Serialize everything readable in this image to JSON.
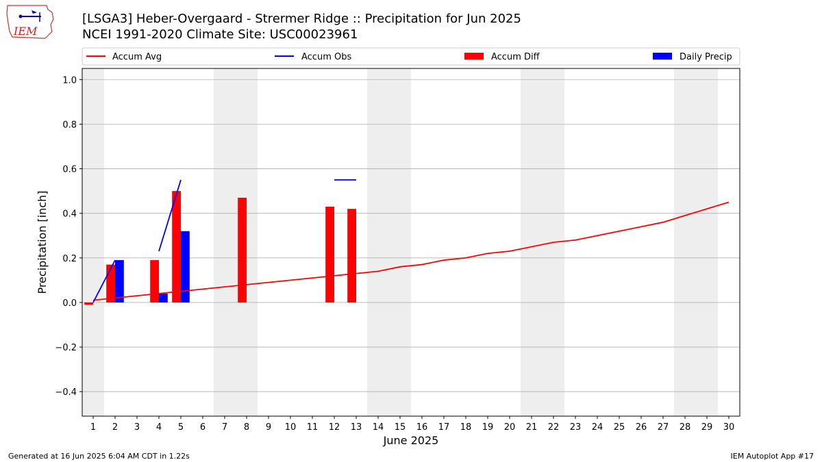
{
  "header": {
    "title": "[LSGA3] Heber-Overgaard - Strermer Ridge :: Precipitation for Jun 2025",
    "subtitle": "NCEI 1991-2020 Climate Site: USC00023961",
    "logo_text": "IEM"
  },
  "footer": {
    "left": "Generated at 16 Jun 2025 6:04 AM CDT in 1.22s",
    "right": "IEM Autoplot App #17"
  },
  "colors": {
    "accum_avg": "#ff0000",
    "accum_obs": "#0000ff",
    "accum_diff": "#ff0000",
    "daily_precip": "#0000ff",
    "weekend_band": "#eeeeee",
    "grid": "#b0b0b0"
  },
  "chart_data": {
    "type": "bar",
    "xlabel": "June 2025",
    "ylabel": "Precipitation [inch]",
    "xlim": [
      0.5,
      30.5
    ],
    "ylim": [
      -0.51,
      1.05
    ],
    "x_ticks": [
      1,
      2,
      3,
      4,
      5,
      6,
      7,
      8,
      9,
      10,
      11,
      12,
      13,
      14,
      15,
      16,
      17,
      18,
      19,
      20,
      21,
      22,
      23,
      24,
      25,
      26,
      27,
      28,
      29,
      30
    ],
    "y_ticks": [
      -0.4,
      -0.2,
      0.0,
      0.2,
      0.4,
      0.6,
      0.8,
      1.0
    ],
    "y_tick_labels": [
      "−0.4",
      "−0.2",
      "0.0",
      "0.2",
      "0.4",
      "0.6",
      "0.8",
      "1.0"
    ],
    "grid": true,
    "legend_position": "top",
    "weekend_days": [
      1,
      7,
      8,
      14,
      15,
      21,
      22,
      28,
      29
    ],
    "series": [
      {
        "name": "Accum Avg",
        "kind": "line",
        "x": [
          1,
          2,
          3,
          4,
          5,
          6,
          7,
          8,
          9,
          10,
          11,
          12,
          13,
          14,
          15,
          16,
          17,
          18,
          19,
          20,
          21,
          22,
          23,
          24,
          25,
          26,
          27,
          28,
          29,
          30
        ],
        "values": [
          0.01,
          0.02,
          0.03,
          0.04,
          0.05,
          0.06,
          0.07,
          0.08,
          0.09,
          0.1,
          0.11,
          0.12,
          0.13,
          0.14,
          0.16,
          0.17,
          0.19,
          0.2,
          0.22,
          0.23,
          0.25,
          0.27,
          0.28,
          0.3,
          0.32,
          0.34,
          0.36,
          0.39,
          0.42,
          0.45
        ]
      },
      {
        "name": "Accum Obs",
        "kind": "line",
        "segments": [
          {
            "x": [
              1,
              2
            ],
            "values": [
              0.0,
              0.19
            ]
          },
          {
            "x": [
              4,
              5
            ],
            "values": [
              0.23,
              0.55
            ]
          },
          {
            "x": [
              12,
              13
            ],
            "values": [
              0.55,
              0.55
            ]
          }
        ]
      },
      {
        "name": "Accum Diff",
        "kind": "bar",
        "x": [
          1,
          2,
          4,
          5,
          8,
          12,
          13
        ],
        "values": [
          -0.01,
          0.17,
          0.19,
          0.5,
          0.47,
          0.43,
          0.42
        ]
      },
      {
        "name": "Daily Precip",
        "kind": "bar",
        "x": [
          2,
          4,
          5
        ],
        "values": [
          0.19,
          0.04,
          0.32
        ]
      }
    ]
  }
}
